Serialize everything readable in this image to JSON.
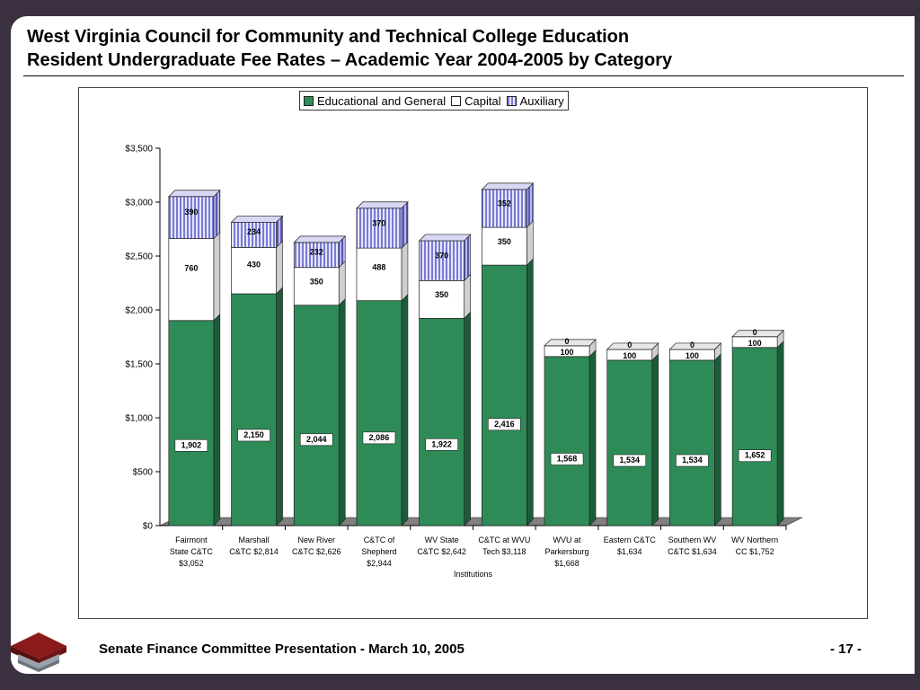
{
  "header": {
    "title_line1": "West Virginia Council for Community and Technical College Education",
    "title_line2": "Resident Undergraduate Fee Rates – Academic Year 2004-2005 by Category"
  },
  "footer": {
    "presentation": "Senate Finance Committee Presentation   -   March 10, 2005",
    "page": "- 17 -"
  },
  "colors": {
    "educational": "#2e8b57",
    "capital": "#ffffff",
    "auxiliary": "#c9c9f0",
    "frame": "#3b3040"
  },
  "chart_data": {
    "type": "bar",
    "stacked": true,
    "xlabel": "Institutions",
    "ylabel": "",
    "ylim": [
      0,
      3500
    ],
    "yticks": [
      "$0",
      "$500",
      "$1,000",
      "$1,500",
      "$2,000",
      "$2,500",
      "$3,000",
      "$3,500"
    ],
    "ytick_values": [
      0,
      500,
      1000,
      1500,
      2000,
      2500,
      3000,
      3500
    ],
    "legend_position": "top-center",
    "categories": [
      [
        "Fairmont",
        "State C&TC",
        "$3,052"
      ],
      [
        "Marshall",
        "C&TC $2,814"
      ],
      [
        "New River",
        "C&TC $2,626"
      ],
      [
        "C&TC of",
        "Shepherd",
        "$2,944"
      ],
      [
        "WV State",
        "C&TC $2,642"
      ],
      [
        "C&TC at WVU",
        "Tech $3,118"
      ],
      [
        "WVU at",
        "Parkersburg",
        "$1,668"
      ],
      [
        "Eastern C&TC",
        "$1,634"
      ],
      [
        "Southern WV",
        "C&TC $1,634"
      ],
      [
        "WV Northern",
        "CC $1,752"
      ]
    ],
    "series": [
      {
        "name": "Educational and General",
        "values": [
          1902,
          2150,
          2044,
          2086,
          1922,
          2416,
          1568,
          1534,
          1534,
          1652
        ],
        "labels": [
          "1,902",
          "2,150",
          "2,044",
          "2,086",
          "1,922",
          "2,416",
          "1,568",
          "1,534",
          "1,534",
          "1,652"
        ]
      },
      {
        "name": "Capital",
        "values": [
          760,
          430,
          350,
          488,
          350,
          350,
          100,
          100,
          100,
          100
        ],
        "labels": [
          "760",
          "430",
          "350",
          "488",
          "350",
          "350",
          "100",
          "100",
          "100",
          "100"
        ]
      },
      {
        "name": "Auxiliary",
        "values": [
          390,
          234,
          232,
          370,
          370,
          352,
          0,
          0,
          0,
          0
        ],
        "labels": [
          "390",
          "234",
          "232",
          "370",
          "370",
          "352",
          "0",
          "0",
          "0",
          "0"
        ]
      }
    ]
  }
}
